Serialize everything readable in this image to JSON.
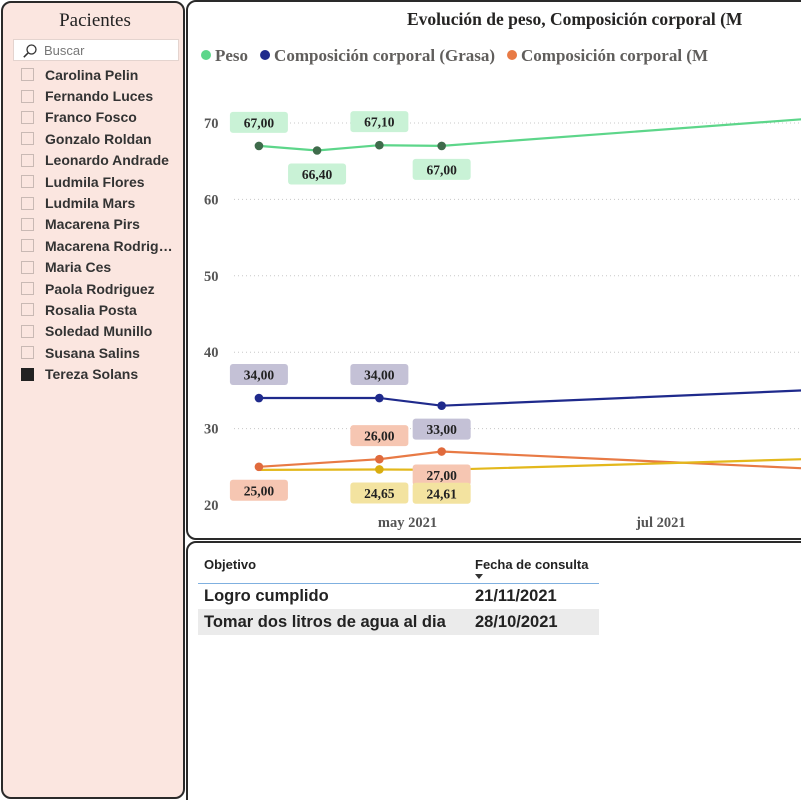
{
  "slicer": {
    "title": "Pacientes",
    "search_placeholder": "Buscar",
    "patients": [
      {
        "name": "Carolina Pelin",
        "checked": false
      },
      {
        "name": "Fernando Luces",
        "checked": false
      },
      {
        "name": "Franco Fosco",
        "checked": false
      },
      {
        "name": "Gonzalo Roldan",
        "checked": false
      },
      {
        "name": "Leonardo Andrade",
        "checked": false
      },
      {
        "name": "Ludmila Flores",
        "checked": false
      },
      {
        "name": "Ludmila Mars",
        "checked": false
      },
      {
        "name": "Macarena Pirs",
        "checked": false
      },
      {
        "name": "Macarena Rodriguez",
        "checked": false
      },
      {
        "name": "Maria Ces",
        "checked": false
      },
      {
        "name": "Paola Rodriguez",
        "checked": false
      },
      {
        "name": "Rosalia Posta",
        "checked": false
      },
      {
        "name": "Soledad Munillo",
        "checked": false
      },
      {
        "name": "Susana Salins",
        "checked": false
      },
      {
        "name": "Tereza Solans",
        "checked": true
      }
    ]
  },
  "chart_data": {
    "type": "line",
    "title": "Evolución de peso, Composición corporal (M",
    "ylim": [
      20,
      72
    ],
    "yticks": [
      20,
      30,
      40,
      50,
      60,
      70
    ],
    "x_range": [
      "2021-03-26",
      "2021-08-10"
    ],
    "x_tick_labels": [
      {
        "label": "may 2021",
        "date": "2021-05-01"
      },
      {
        "label": "jul 2021",
        "date": "2021-07-01"
      }
    ],
    "series": [
      {
        "name": "Peso",
        "color": "#5dd68a",
        "marker_color": "#3f6b4b",
        "label_bg": "#c9f2d6",
        "show_markers": true,
        "points": [
          {
            "date": "2021-04-01",
            "value": 67.0,
            "label": "67,00",
            "label_pos": "above"
          },
          {
            "date": "2021-04-15",
            "value": 66.4,
            "label": "66,40",
            "label_pos": "below"
          },
          {
            "date": "2021-04-30",
            "value": 67.1,
            "label": "67,10",
            "label_pos": "above"
          },
          {
            "date": "2021-05-15",
            "value": 67.0,
            "label": "67,00",
            "label_pos": "below"
          },
          {
            "date": "2021-08-10",
            "value": 70.5
          }
        ]
      },
      {
        "name": "Composición corporal (Grasa)",
        "color": "#1f2a8c",
        "marker_color": "#1f2a8c",
        "label_bg": "#c4c1d6",
        "show_markers": true,
        "points": [
          {
            "date": "2021-04-01",
            "value": 34.0,
            "label": "34,00",
            "label_pos": "above"
          },
          {
            "date": "2021-04-30",
            "value": 34.0,
            "label": "34,00",
            "label_pos": "above"
          },
          {
            "date": "2021-05-15",
            "value": 33.0,
            "label": "33,00",
            "label_pos": "below"
          },
          {
            "date": "2021-08-10",
            "value": 35.0
          }
        ]
      },
      {
        "name": "Composición corporal (M",
        "color": "#e87a45",
        "marker_color": "#e06a3c",
        "label_bg": "#f6c6b2",
        "show_markers": true,
        "points": [
          {
            "date": "2021-04-01",
            "value": 25.0,
            "label": "25,00",
            "label_pos": "below"
          },
          {
            "date": "2021-04-30",
            "value": 26.0,
            "label": "26,00",
            "label_pos": "above"
          },
          {
            "date": "2021-05-15",
            "value": 27.0,
            "label": "27,00",
            "label_pos": "below"
          },
          {
            "date": "2021-08-10",
            "value": 24.8
          }
        ]
      },
      {
        "name": "",
        "color": "#e3b81c",
        "marker_color": "#d9ad10",
        "label_bg": "#f3e3a0",
        "show_markers": true,
        "in_legend": false,
        "points": [
          {
            "date": "2021-04-01",
            "value": 24.6
          },
          {
            "date": "2021-04-30",
            "value": 24.65,
            "label": "24,65",
            "label_pos": "below"
          },
          {
            "date": "2021-05-15",
            "value": 24.61,
            "label": "24,61",
            "label_pos": "below"
          },
          {
            "date": "2021-08-10",
            "value": 26.0
          }
        ]
      }
    ],
    "legend": {
      "placement": "top-left"
    },
    "grid": true
  },
  "table": {
    "headers": {
      "objective": "Objetivo",
      "date": "Fecha de consulta"
    },
    "rows": [
      {
        "objective": "Logro cumplido",
        "date": "21/11/2021"
      },
      {
        "objective": "Tomar dos litros de agua al dia",
        "date": "28/10/2021"
      }
    ]
  },
  "icons": {
    "search": "search-icon"
  }
}
